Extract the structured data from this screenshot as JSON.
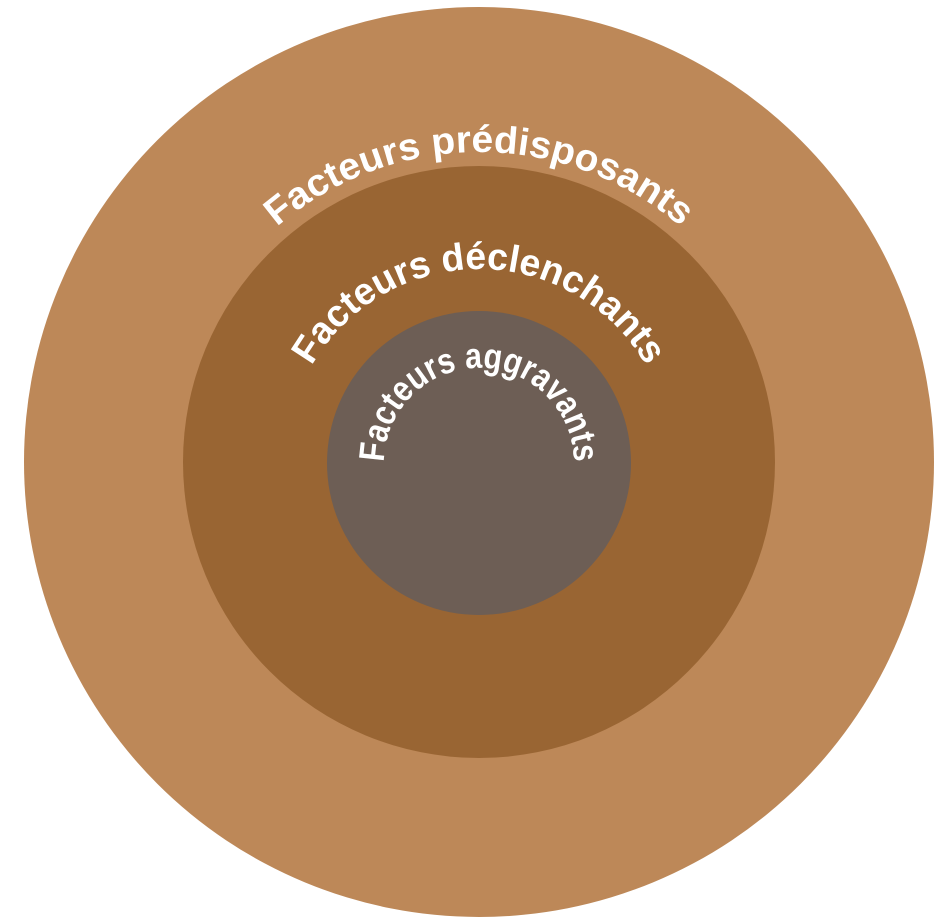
{
  "rings": [
    {
      "label": "Facteurs prédisposants"
    },
    {
      "label": "Facteurs déclenchants"
    },
    {
      "label": "Facteurs aggravants"
    }
  ]
}
